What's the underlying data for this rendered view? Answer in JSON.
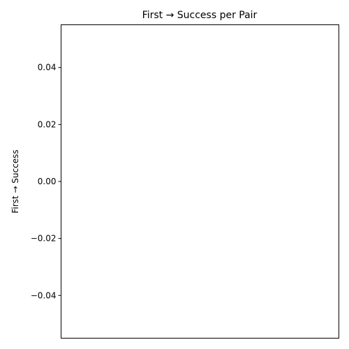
{
  "chart_data": {
    "type": "line",
    "title": "First → Success per Pair",
    "xlabel": "",
    "ylabel": "First → Success",
    "ylim": [
      -0.055,
      0.055
    ],
    "yticks": [
      -0.04,
      -0.02,
      0.0,
      0.02,
      0.04
    ],
    "ytick_labels": [
      "−0.04",
      "−0.02",
      "0.00",
      "0.02",
      "0.04"
    ],
    "xticks": [],
    "series": [],
    "grid": false
  },
  "colors": {
    "axis": "#000000",
    "background": "#ffffff"
  }
}
